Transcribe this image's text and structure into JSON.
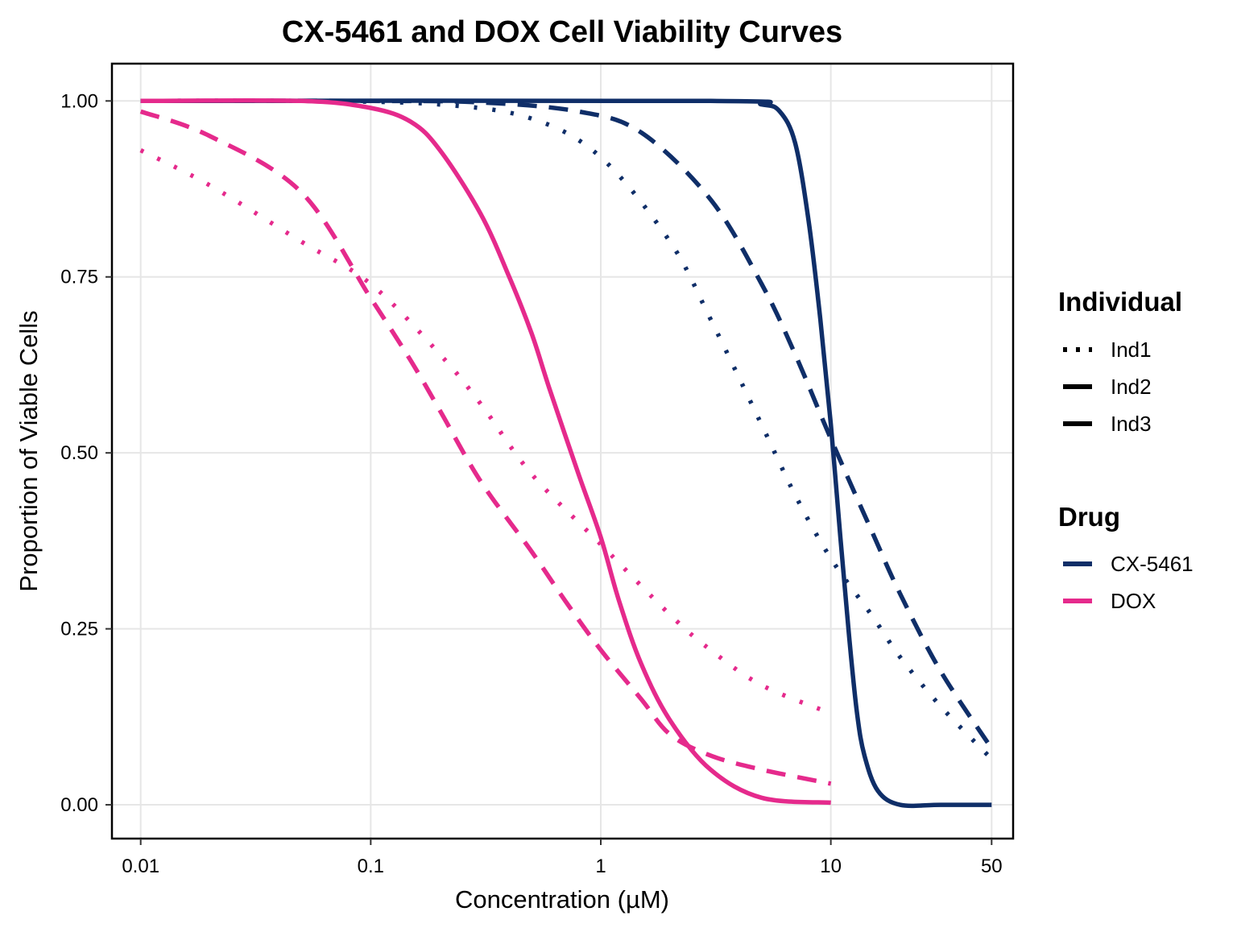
{
  "chart_data": {
    "type": "line",
    "title": "CX-5461 and DOX Cell Viability Curves",
    "xlabel": "Concentration (µM)",
    "ylabel": "Proportion of Viable Cells",
    "x_scale": "log10",
    "xlim": [
      0.0075,
      62
    ],
    "ylim": [
      -0.048,
      1.053
    ],
    "x_ticks": [
      {
        "value": 0.01,
        "label": "0.01"
      },
      {
        "value": 0.1,
        "label": "0.1"
      },
      {
        "value": 1,
        "label": "1"
      },
      {
        "value": 10,
        "label": "10"
      },
      {
        "value": 50,
        "label": "50"
      }
    ],
    "y_ticks": [
      {
        "value": 0.0,
        "label": "0.00"
      },
      {
        "value": 0.25,
        "label": "0.25"
      },
      {
        "value": 0.5,
        "label": "0.50"
      },
      {
        "value": 0.75,
        "label": "0.75"
      },
      {
        "value": 1.0,
        "label": "1.00"
      }
    ],
    "grid": true,
    "legend_position": "right",
    "colors": {
      "CX-5461": "#0f2e68",
      "DOX": "#e52a8c"
    },
    "legends": [
      {
        "title": "Individual",
        "kind": "linetype",
        "entries": [
          {
            "label": "Ind1",
            "linetype": "dotted"
          },
          {
            "label": "Ind2",
            "linetype": "dashed"
          },
          {
            "label": "Ind3",
            "linetype": "solid"
          }
        ]
      },
      {
        "title": "Drug",
        "kind": "color",
        "entries": [
          {
            "label": "CX-5461",
            "color": "#0f2e68"
          },
          {
            "label": "DOX",
            "color": "#e52a8c"
          }
        ]
      }
    ],
    "series": [
      {
        "drug": "CX-5461",
        "individual": "Ind1",
        "linetype": "dotted",
        "x": [
          0.01,
          0.05,
          0.2,
          0.5,
          1,
          2,
          3,
          5,
          7,
          10,
          15,
          20,
          30,
          50
        ],
        "y": [
          1.0,
          1.0,
          0.995,
          0.975,
          0.92,
          0.8,
          0.69,
          0.54,
          0.44,
          0.35,
          0.27,
          0.21,
          0.14,
          0.065
        ]
      },
      {
        "drug": "CX-5461",
        "individual": "Ind2",
        "linetype": "dashed",
        "x": [
          0.01,
          0.1,
          0.3,
          0.8,
          1.5,
          3,
          5,
          7,
          10,
          15,
          20,
          30,
          50
        ],
        "y": [
          1.0,
          1.0,
          0.998,
          0.985,
          0.955,
          0.86,
          0.74,
          0.64,
          0.52,
          0.39,
          0.3,
          0.19,
          0.08
        ]
      },
      {
        "drug": "CX-5461",
        "individual": "Ind3",
        "linetype": "solid",
        "x": [
          0.01,
          3,
          5,
          6,
          7,
          8,
          9,
          10,
          11,
          12,
          13,
          14,
          16,
          20,
          30,
          50
        ],
        "y": [
          1.0,
          1.0,
          0.995,
          0.985,
          0.94,
          0.83,
          0.69,
          0.54,
          0.38,
          0.24,
          0.13,
          0.07,
          0.02,
          0.0,
          0.0,
          0.0
        ]
      },
      {
        "drug": "DOX",
        "individual": "Ind1",
        "linetype": "dotted",
        "x": [
          0.01,
          0.02,
          0.05,
          0.1,
          0.2,
          0.3,
          0.5,
          1,
          2,
          3,
          5,
          10
        ],
        "y": [
          0.93,
          0.88,
          0.8,
          0.74,
          0.64,
          0.57,
          0.47,
          0.37,
          0.27,
          0.22,
          0.17,
          0.13
        ]
      },
      {
        "drug": "DOX",
        "individual": "Ind2",
        "linetype": "dashed",
        "x": [
          0.01,
          0.02,
          0.05,
          0.1,
          0.15,
          0.2,
          0.3,
          0.5,
          0.7,
          1,
          1.5,
          2,
          3,
          5,
          10
        ],
        "y": [
          0.985,
          0.95,
          0.87,
          0.72,
          0.63,
          0.56,
          0.46,
          0.36,
          0.29,
          0.22,
          0.15,
          0.1,
          0.07,
          0.05,
          0.03
        ]
      },
      {
        "drug": "DOX",
        "individual": "Ind3",
        "linetype": "solid",
        "x": [
          0.01,
          0.05,
          0.1,
          0.15,
          0.2,
          0.3,
          0.4,
          0.5,
          0.6,
          0.8,
          1,
          1.2,
          1.5,
          2,
          3,
          5,
          10
        ],
        "y": [
          1.0,
          1.0,
          0.99,
          0.97,
          0.93,
          0.84,
          0.75,
          0.67,
          0.59,
          0.47,
          0.38,
          0.29,
          0.2,
          0.12,
          0.05,
          0.01,
          0.003
        ]
      }
    ]
  }
}
